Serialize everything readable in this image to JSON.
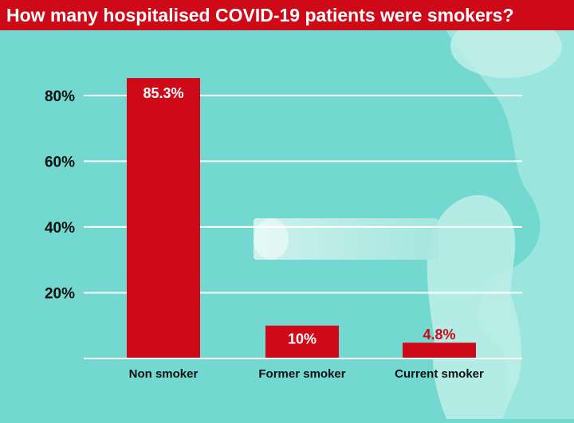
{
  "title": "How many hospitalised COVID-19 patients were smokers?",
  "colors": {
    "background": "#73d9d0",
    "bar": "#cf0a18",
    "title_bar": "#cf0a18",
    "gridline": "#ffffff",
    "bar_label_light": "#ffffff",
    "bar_label_dark": "#cf0a18",
    "tick_label": "#111111"
  },
  "chart_data": {
    "type": "bar",
    "title": "How many hospitalised COVID-19 patients were smokers?",
    "categories": [
      "Non smoker",
      "Former smoker",
      "Current smoker"
    ],
    "values": [
      85.3,
      10,
      4.8
    ],
    "data_labels": [
      "85.3%",
      "10%",
      "4.8%"
    ],
    "y_ticks": [
      20,
      40,
      60,
      80
    ],
    "y_tick_labels": [
      "20%",
      "40%",
      "60%",
      "80%"
    ],
    "ylim": [
      0,
      85.3
    ],
    "grid": true,
    "xlabel": "",
    "ylabel": ""
  }
}
